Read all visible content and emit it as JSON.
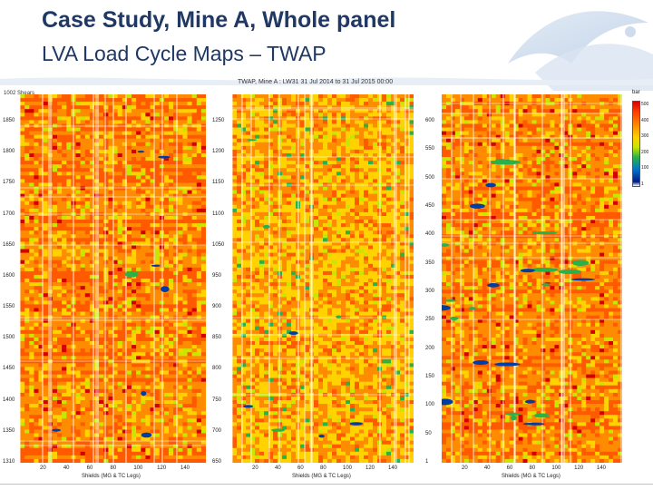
{
  "slide": {
    "title": "Case Study, Mine A, Whole panel",
    "subtitle": "LVA Load Cycle Maps – TWAP"
  },
  "figure": {
    "title": "TWAP, Mine A : LW31 31 Jul 2014 to 31 Jul 2015 00:00",
    "y_axis_title": "1002 Shears",
    "x_axis_label": "Shields (MG & TC Legs)",
    "colorbar_unit": "bar",
    "colorbar_ticks": [
      "500",
      "400",
      "300",
      "200",
      "100",
      "1"
    ],
    "palette": {
      "red": "#d40000",
      "orange_red": "#ff5a00",
      "orange": "#ff8c00",
      "yellow": "#ffd200",
      "yellow_green": "#c8e600",
      "green": "#2bb04a",
      "blue": "#003da5",
      "dark_blue": "#001a80",
      "grid": "#ffffff"
    }
  },
  "panels": [
    {
      "name": "left",
      "y_ticks": [
        "1850",
        "1800",
        "1750",
        "1700",
        "1650",
        "1600",
        "1550",
        "1500",
        "1450",
        "1400",
        "1350",
        "1310"
      ],
      "x_ticks": [
        "20",
        "40",
        "60",
        "80",
        "100",
        "120",
        "140"
      ],
      "dominant": "orange"
    },
    {
      "name": "middle",
      "y_ticks": [
        "1250",
        "1200",
        "1150",
        "1100",
        "1050",
        "950",
        "900",
        "850",
        "800",
        "750",
        "700",
        "650"
      ],
      "x_ticks": [
        "20",
        "40",
        "60",
        "80",
        "100",
        "120",
        "140"
      ],
      "dominant": "yellow"
    },
    {
      "name": "right",
      "y_ticks": [
        "600",
        "550",
        "500",
        "450",
        "400",
        "350",
        "300",
        "250",
        "200",
        "150",
        "100",
        "50",
        "1"
      ],
      "x_ticks": [
        "20",
        "40",
        "60",
        "80",
        "100",
        "120",
        "140"
      ],
      "dominant": "orange"
    }
  ]
}
